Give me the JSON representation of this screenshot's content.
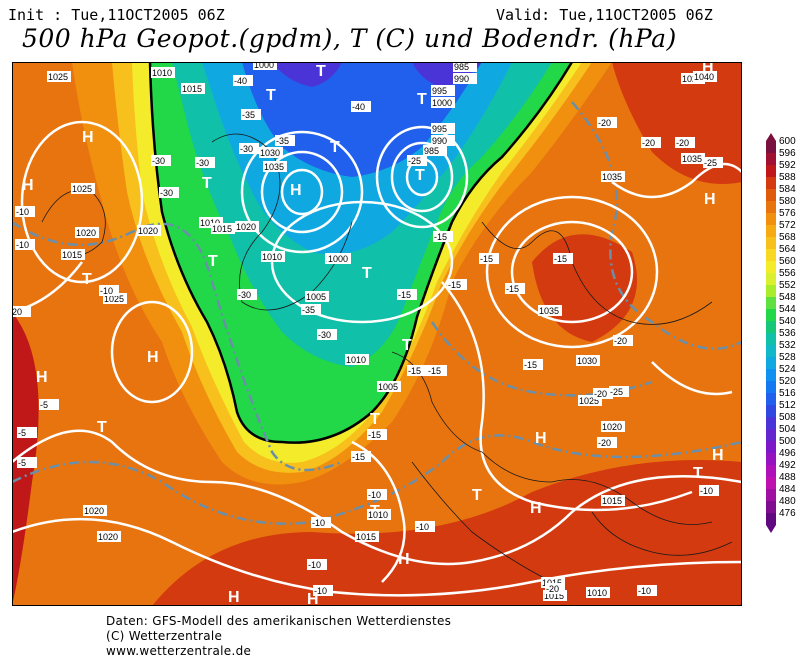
{
  "header": {
    "init": "Init : Tue,11OCT2005 06Z",
    "valid": "Valid: Tue,11OCT2005 06Z",
    "title": "500 hPa Geopot.(gpdm), T (C) und Bodendr. (hPa)"
  },
  "footer": {
    "line1": "Daten: GFS-Modell des amerikanischen Wetterdienstes",
    "line2": "(C) Wetterzentrale",
    "line3": "www.wetterzentrale.de"
  },
  "scale": {
    "labels": [
      "600",
      "596",
      "592",
      "588",
      "584",
      "580",
      "576",
      "572",
      "568",
      "564",
      "560",
      "556",
      "552",
      "548",
      "544",
      "540",
      "536",
      "532",
      "528",
      "524",
      "520",
      "516",
      "512",
      "508",
      "504",
      "500",
      "496",
      "492",
      "488",
      "484",
      "480",
      "476"
    ],
    "colors": [
      "#7a1040",
      "#a01030",
      "#c01818",
      "#d43a10",
      "#e05a0c",
      "#e87410",
      "#f0900e",
      "#f6aa14",
      "#f8c01c",
      "#f8d822",
      "#f4ec2a",
      "#d8f030",
      "#a8ec2c",
      "#5ee040",
      "#22d848",
      "#14c878",
      "#10c0a8",
      "#10b8c8",
      "#10a8e0",
      "#1090f0",
      "#1478f0",
      "#2060ec",
      "#3048e0",
      "#4a34d8",
      "#6424d0",
      "#7c18c8",
      "#9614c0",
      "#b010b8",
      "#c010b0",
      "#a010a0",
      "#800c90",
      "#600880"
    ]
  },
  "map": {
    "pressure_labels": [
      "1025",
      "1010",
      "1015",
      "1000",
      "1030",
      "1035",
      "1020",
      "1025",
      "1010",
      "985",
      "990",
      "995",
      "1000",
      "995",
      "990",
      "985",
      "1025",
      "1020",
      "1015",
      "1010",
      "1020",
      "1015",
      "1010",
      "1000",
      "1005",
      "1010",
      "1025",
      "1035",
      "1035",
      "1030",
      "1025",
      "1020",
      "1005",
      "1020",
      "1020",
      "1010",
      "1015",
      "1015",
      "1015",
      "1010",
      "1015",
      "1040",
      "1035"
    ],
    "temp_labels": [
      "-40",
      "-35",
      "-40",
      "-30",
      "-35",
      "-30",
      "-30",
      "-30",
      "-20",
      "-10",
      "-10",
      "-30",
      "-35",
      "-30",
      "-20",
      "-25",
      "-20",
      "-25",
      "-15",
      "-15",
      "-15",
      "-15",
      "-15",
      "-15",
      "-20",
      "-15",
      "-20",
      "-20",
      "-25",
      "-15",
      "-15",
      "-15",
      "-15",
      "-10",
      "-10",
      "-10",
      "-10",
      "-10",
      "-10",
      "-5",
      "-5",
      "-5",
      "20",
      "-10",
      "-20",
      "-10"
    ],
    "systems": [
      "H",
      "H",
      "H",
      "H",
      "H",
      "H",
      "H",
      "H",
      "H",
      "H",
      "H",
      "H",
      "H",
      "T",
      "T",
      "T",
      "T",
      "T",
      "T",
      "T",
      "T",
      "T",
      "T",
      "T",
      "T",
      "T",
      "T",
      "T"
    ]
  }
}
